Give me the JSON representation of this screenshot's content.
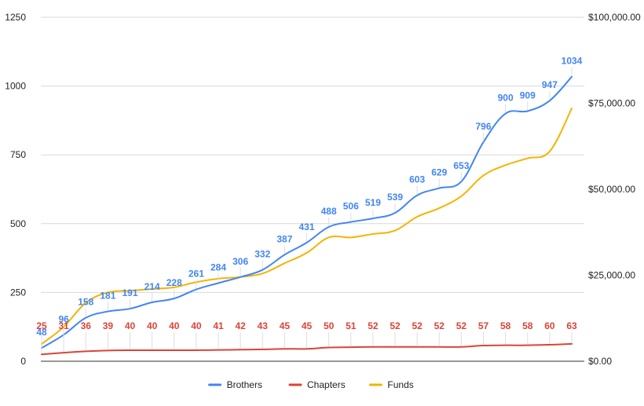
{
  "chart_data": {
    "type": "line",
    "title": "",
    "xlabel": "",
    "ylabel": "",
    "ylim": [
      0,
      1250
    ],
    "y_ticks": [
      "0",
      "250",
      "500",
      "750",
      "1000",
      "1250"
    ],
    "y2lim": [
      0,
      100000
    ],
    "y2_ticks": [
      "$0.00",
      "$25,000.00",
      "$50,000.00",
      "$75,000.00",
      "$100,000.00"
    ],
    "grid": true,
    "legend_position": "bottom",
    "n_points": 25,
    "series": [
      {
        "name": "Brothers",
        "color": "#4285F4",
        "axis": "left",
        "show_labels": true,
        "values": [
          48,
          96,
          158,
          181,
          191,
          214,
          228,
          261,
          284,
          306,
          332,
          387,
          431,
          488,
          506,
          519,
          539,
          603,
          629,
          653,
          796,
          900,
          909,
          947,
          1034
        ]
      },
      {
        "name": "Chapters",
        "color": "#DB4437",
        "axis": "left",
        "show_labels": true,
        "values": [
          25,
          31,
          36,
          39,
          40,
          40,
          40,
          40,
          41,
          42,
          43,
          45,
          45,
          50,
          51,
          52,
          52,
          52,
          52,
          52,
          57,
          58,
          58,
          60,
          63
        ]
      },
      {
        "name": "Funds",
        "color": "#F4B400",
        "axis": "right",
        "show_labels": false,
        "values": [
          5000,
          10000,
          17000,
          20000,
          20500,
          21000,
          21500,
          23000,
          24000,
          24500,
          25500,
          28500,
          31500,
          36000,
          36000,
          37000,
          38000,
          42000,
          44500,
          48000,
          54000,
          57000,
          59000,
          61000,
          73500
        ]
      }
    ]
  }
}
